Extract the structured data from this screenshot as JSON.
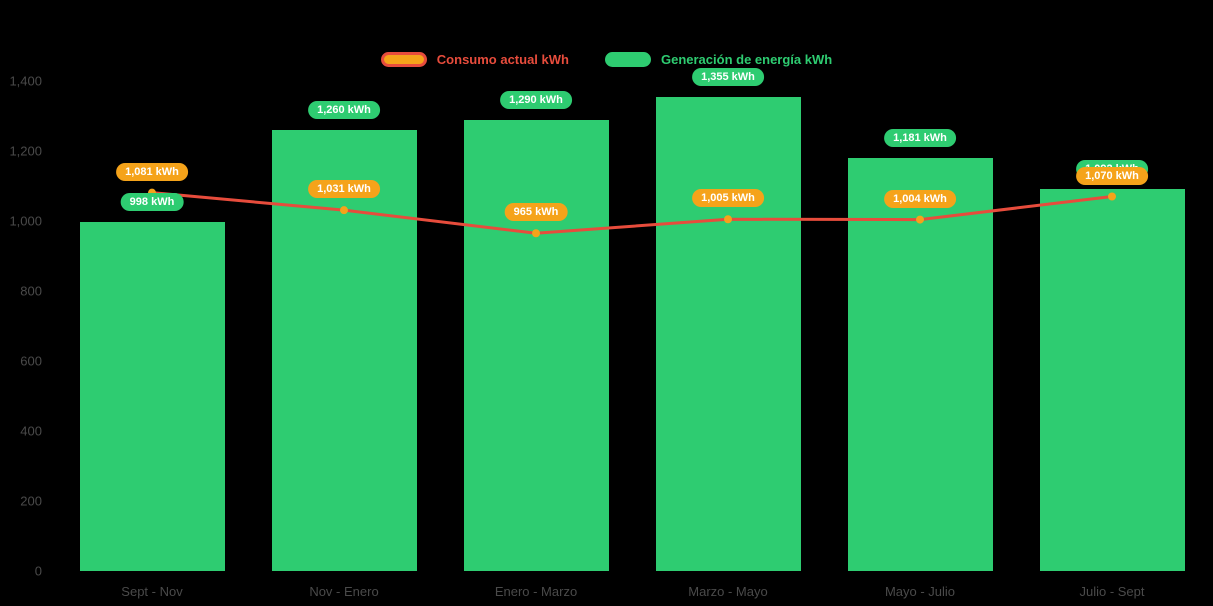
{
  "chart_data": {
    "type": "bar",
    "subtype": "bar-with-line-overlay",
    "title": "",
    "xlabel": "",
    "ylabel": "",
    "categories": [
      "Sept - Nov",
      "Nov - Enero",
      "Enero - Marzo",
      "Marzo - Mayo",
      "Mayo - Julio",
      "Julio - Sept"
    ],
    "series": [
      {
        "name": "Consumo actual kWh",
        "type": "line",
        "line_color": "#E74C3C",
        "marker_color": "#F5A31A",
        "label_bg": "#F5A31A",
        "values": [
          1081,
          1031,
          965,
          1005,
          1004,
          1070
        ],
        "data_labels": [
          "1,081 kWh",
          "1,031 kWh",
          "965 kWh",
          "1,005 kWh",
          "1,004 kWh",
          "1,070 kWh"
        ]
      },
      {
        "name": "Generación de energía kWh",
        "type": "bar",
        "color": "#2ECC71",
        "label_bg": "#2ECC71",
        "values": [
          998,
          1260,
          1290,
          1355,
          1181,
          1092
        ],
        "data_labels": [
          "998 kWh",
          "1,260 kWh",
          "1,290 kWh",
          "1,355 kWh",
          "1,181 kWh",
          "1,092 kWh"
        ]
      }
    ],
    "ylim": [
      0,
      1400
    ],
    "y_ticks": [
      1400,
      1200,
      1000,
      800,
      600,
      400,
      200,
      0
    ],
    "y_tick_labels": [
      "1,400",
      "1,200",
      "1,000",
      "800",
      "600",
      "400",
      "200",
      "0"
    ],
    "grid": false,
    "legend_position": "top-center",
    "background": "#000000",
    "axis_text_color": "#4A4A4A"
  }
}
